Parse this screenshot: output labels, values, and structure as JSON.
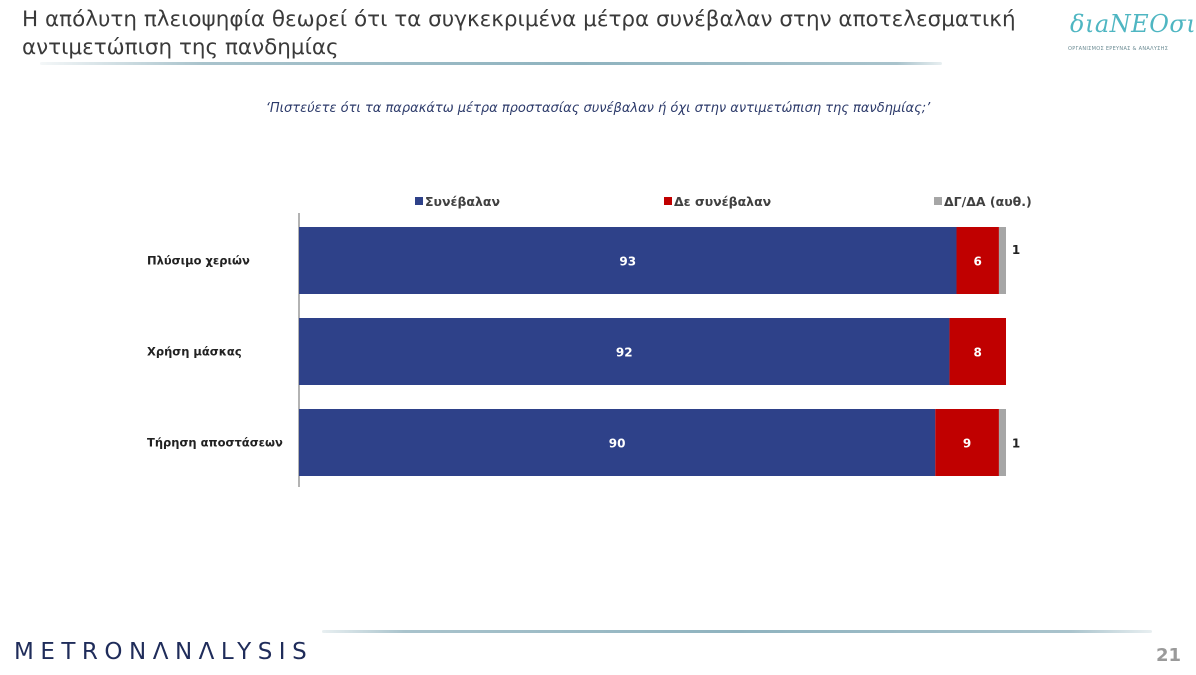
{
  "slide": {
    "title": "Η απόλυτη πλειοψηφία θεωρεί ότι τα συγκεκριμένα μέτρα συνέβαλαν στην αποτελεσματική αντιμετώπιση της πανδημίας",
    "question": "‘Πιστεύετε ότι τα παρακάτω μέτρα προστασίας συνέβαλαν ή όχι στην αντιμετώπιση της πανδημίας;’",
    "logo_text": "διaNEOσις",
    "logo_subtext": "ΟΡΓΑΝΙΣΜΟΣ ΕΡΕΥΝΑΣ & ΑΝΑΛΥΣΗΣ",
    "brand_part1": "METRON",
    "brand_part2": "ΛNΛLYSIS",
    "page_number": "21"
  },
  "chart_data": {
    "type": "bar",
    "orientation": "horizontal",
    "stacked": true,
    "categories": [
      "Πλύσιμο χεριών",
      "Χρήση μάσκας",
      "Τήρηση αποστάσεων"
    ],
    "series": [
      {
        "name": "Συνέβαλαν",
        "values": [
          93,
          92,
          90
        ],
        "color": "#2e4189"
      },
      {
        "name": "Δε συνέβαλαν",
        "values": [
          6,
          8,
          9
        ],
        "color": "#c00000"
      },
      {
        "name": "ΔΓ/ΔΑ (αυθ.)",
        "values": [
          1,
          0,
          1
        ],
        "color": "#a6a6a6"
      }
    ],
    "data_labels": {
      "Συνέβαλαν": [
        "93",
        "92",
        "90"
      ],
      "Δε συνέβαλαν": [
        "6",
        "8",
        "9"
      ],
      "ΔΓ/ΔΑ (αυθ.)": [
        "1",
        "",
        "1"
      ]
    },
    "xlim": [
      0,
      100
    ],
    "legend_position": "top",
    "grid": false
  }
}
